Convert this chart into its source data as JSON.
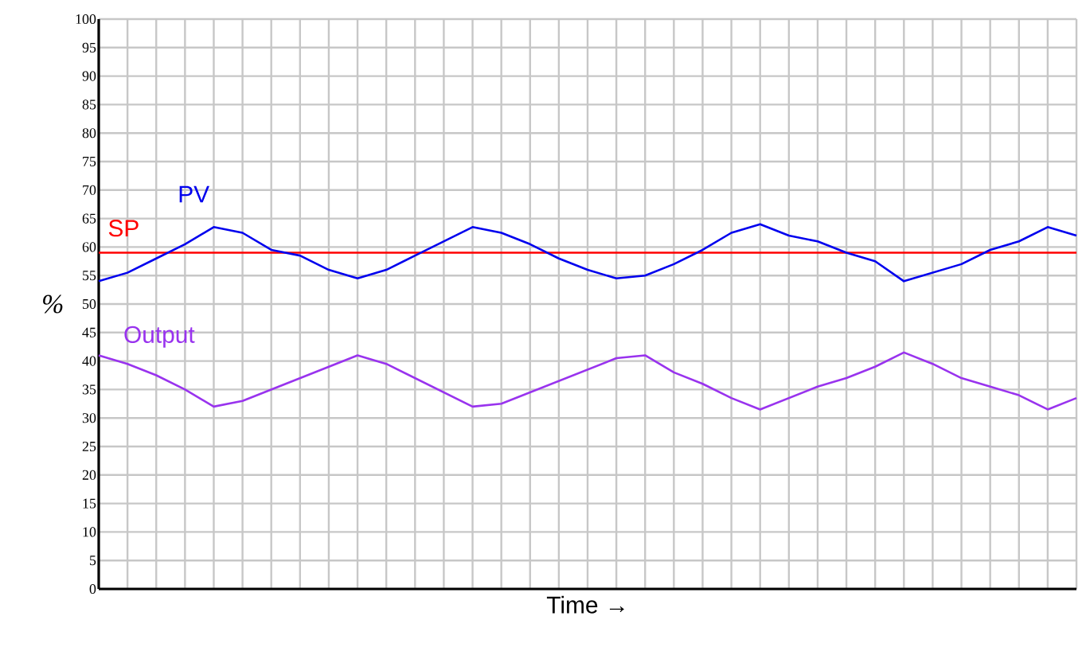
{
  "chart_data": {
    "type": "line",
    "xlabel": "Time →",
    "ylabel": "%",
    "categories": [
      null,
      null,
      null,
      null,
      null,
      null,
      null,
      null,
      null,
      null,
      null,
      null,
      null,
      null,
      null,
      null,
      null,
      null,
      null,
      null,
      null,
      null,
      null,
      null,
      null,
      null,
      null,
      null,
      null,
      null,
      null,
      null,
      null,
      null,
      null
    ],
    "series": [
      {
        "name": "PV",
        "color": "#0000ee",
        "values": [
          54,
          55.5,
          58,
          60.5,
          63.5,
          62.5,
          59.5,
          58.5,
          56,
          54.5,
          56,
          58.5,
          61,
          63.5,
          62.5,
          60.5,
          58,
          56,
          54.5,
          55,
          57,
          59.5,
          62.5,
          64,
          62,
          61,
          59,
          57.5,
          54,
          55.5,
          57,
          59.5,
          61,
          63.5,
          62
        ]
      },
      {
        "name": "Output",
        "color": "#9933ee",
        "values": [
          41,
          39.5,
          37.5,
          35,
          32,
          33,
          35,
          37,
          39,
          41,
          39.5,
          37,
          34.5,
          32,
          32.5,
          34.5,
          36.5,
          38.5,
          40.5,
          41,
          38,
          36,
          33.5,
          31.5,
          33.5,
          35.5,
          37,
          39,
          41.5,
          39.5,
          37,
          35.5,
          34,
          31.5,
          33.5
        ]
      }
    ],
    "ref_lines": [
      {
        "axis": "y",
        "value": 59,
        "label": "SP",
        "color": "#ff0000"
      }
    ],
    "ylim": [
      0,
      100
    ],
    "yticks": [
      0,
      5,
      10,
      15,
      20,
      25,
      30,
      35,
      40,
      45,
      50,
      55,
      60,
      65,
      70,
      75,
      80,
      85,
      90,
      95,
      100
    ],
    "grid": true,
    "tick_labels": "y",
    "line_style": "solid",
    "marker": "none"
  }
}
